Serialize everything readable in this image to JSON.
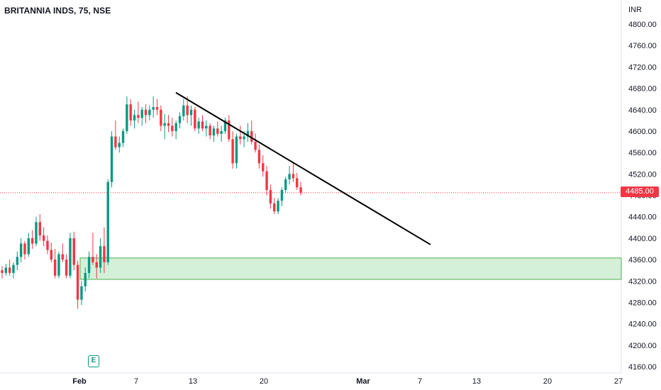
{
  "header": {
    "title": "BRITANNIA INDS, 75, NSE",
    "currency": "INR"
  },
  "last_price_label": "4485.00",
  "event_badge_label": "E",
  "colors": {
    "up": "#089981",
    "down": "#f23645",
    "zone_fill": "#d4f0d9",
    "zone_border": "#4caf50",
    "trendline": "#000000",
    "price_line": "#f23645"
  },
  "chart_data": {
    "type": "candlestick",
    "ylim": [
      4150,
      4825
    ],
    "yticks": [
      "4800.00",
      "4760.00",
      "4720.00",
      "4680.00",
      "4640.00",
      "4600.00",
      "4560.00",
      "4520.00",
      "4480.00",
      "4440.00",
      "4400.00",
      "4360.00",
      "4320.00",
      "4280.00",
      "4240.00",
      "4200.00",
      "4160.00"
    ],
    "xticks": [
      {
        "label": "Feb",
        "bold": true
      },
      {
        "label": "7",
        "bold": false
      },
      {
        "label": "13",
        "bold": false
      },
      {
        "label": "20",
        "bold": false
      },
      {
        "label": "Mar",
        "bold": true
      },
      {
        "label": "7",
        "bold": false
      },
      {
        "label": "13",
        "bold": false
      },
      {
        "label": "20",
        "bold": false
      },
      {
        "label": "27",
        "bold": false
      }
    ],
    "last_price": 4485,
    "support_zone": {
      "low": 4323,
      "high": 4363
    },
    "trendline": {
      "start_price": 4672,
      "end_price": 4388
    },
    "candles": [
      [
        4340,
        4348,
        4325,
        4335
      ],
      [
        4335,
        4352,
        4330,
        4345
      ],
      [
        4345,
        4360,
        4330,
        4335
      ],
      [
        4335,
        4355,
        4325,
        4350
      ],
      [
        4350,
        4375,
        4340,
        4365
      ],
      [
        4365,
        4400,
        4355,
        4390
      ],
      [
        4390,
        4395,
        4360,
        4370
      ],
      [
        4370,
        4410,
        4365,
        4400
      ],
      [
        4400,
        4415,
        4380,
        4390
      ],
      [
        4390,
        4440,
        4385,
        4430
      ],
      [
        4430,
        4445,
        4395,
        4405
      ],
      [
        4405,
        4420,
        4385,
        4395
      ],
      [
        4395,
        4405,
        4370,
        4378
      ],
      [
        4378,
        4392,
        4355,
        4360
      ],
      [
        4360,
        4380,
        4325,
        4330
      ],
      [
        4330,
        4375,
        4325,
        4370
      ],
      [
        4370,
        4390,
        4355,
        4360
      ],
      [
        4360,
        4370,
        4325,
        4330
      ],
      [
        4330,
        4410,
        4325,
        4400
      ],
      [
        4400,
        4412,
        4340,
        4350
      ],
      [
        4350,
        4358,
        4268,
        4285
      ],
      [
        4285,
        4320,
        4275,
        4310
      ],
      [
        4310,
        4345,
        4300,
        4335
      ],
      [
        4335,
        4375,
        4325,
        4365
      ],
      [
        4365,
        4410,
        4350,
        4355
      ],
      [
        4355,
        4370,
        4325,
        4345
      ],
      [
        4345,
        4400,
        4335,
        4385
      ],
      [
        4385,
        4420,
        4335,
        4355
      ],
      [
        4355,
        4510,
        4350,
        4505
      ],
      [
        4505,
        4600,
        4495,
        4590
      ],
      [
        4590,
        4620,
        4565,
        4570
      ],
      [
        4570,
        4590,
        4560,
        4578
      ],
      [
        4578,
        4605,
        4570,
        4600
      ],
      [
        4600,
        4665,
        4595,
        4650
      ],
      [
        4650,
        4660,
        4610,
        4620
      ],
      [
        4620,
        4640,
        4605,
        4630
      ],
      [
        4630,
        4655,
        4615,
        4625
      ],
      [
        4625,
        4645,
        4610,
        4640
      ],
      [
        4640,
        4650,
        4615,
        4630
      ],
      [
        4630,
        4648,
        4620,
        4640
      ],
      [
        4640,
        4665,
        4625,
        4645
      ],
      [
        4645,
        4660,
        4630,
        4640
      ],
      [
        4640,
        4648,
        4600,
        4610
      ],
      [
        4610,
        4632,
        4585,
        4615
      ],
      [
        4615,
        4630,
        4598,
        4610
      ],
      [
        4610,
        4625,
        4590,
        4600
      ],
      [
        4600,
        4620,
        4585,
        4615
      ],
      [
        4615,
        4635,
        4605,
        4628
      ],
      [
        4628,
        4660,
        4620,
        4648
      ],
      [
        4648,
        4665,
        4615,
        4630
      ],
      [
        4630,
        4648,
        4610,
        4640
      ],
      [
        4640,
        4645,
        4600,
        4605
      ],
      [
        4605,
        4625,
        4595,
        4618
      ],
      [
        4618,
        4630,
        4600,
        4605
      ],
      [
        4605,
        4620,
        4590,
        4610
      ],
      [
        4610,
        4615,
        4585,
        4592
      ],
      [
        4592,
        4610,
        4580,
        4605
      ],
      [
        4605,
        4618,
        4590,
        4595
      ],
      [
        4595,
        4610,
        4580,
        4600
      ],
      [
        4600,
        4625,
        4595,
        4620
      ],
      [
        4620,
        4630,
        4580,
        4585
      ],
      [
        4585,
        4600,
        4530,
        4540
      ],
      [
        4540,
        4595,
        4530,
        4590
      ],
      [
        4590,
        4610,
        4575,
        4585
      ],
      [
        4585,
        4600,
        4570,
        4590
      ],
      [
        4590,
        4615,
        4580,
        4600
      ],
      [
        4600,
        4620,
        4575,
        4580
      ],
      [
        4580,
        4595,
        4560,
        4565
      ],
      [
        4565,
        4575,
        4530,
        4540
      ],
      [
        4540,
        4555,
        4515,
        4525
      ],
      [
        4525,
        4535,
        4480,
        4490
      ],
      [
        4490,
        4500,
        4455,
        4465
      ],
      [
        4465,
        4475,
        4445,
        4450
      ],
      [
        4450,
        4475,
        4445,
        4470
      ],
      [
        4470,
        4495,
        4460,
        4490
      ],
      [
        4490,
        4515,
        4485,
        4510
      ],
      [
        4510,
        4535,
        4500,
        4520
      ],
      [
        4520,
        4540,
        4505,
        4512
      ],
      [
        4512,
        4522,
        4490,
        4495
      ],
      [
        4495,
        4505,
        4480,
        4485
      ]
    ]
  }
}
